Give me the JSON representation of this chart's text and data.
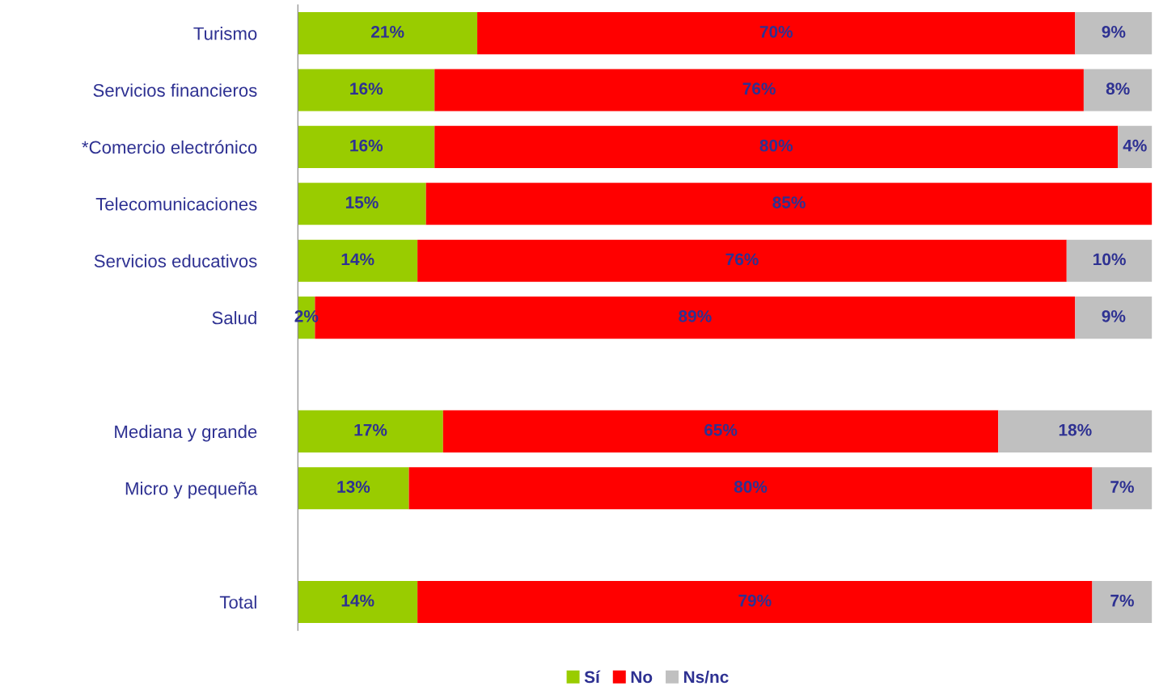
{
  "chart_data": {
    "type": "bar",
    "orientation": "horizontal",
    "stacked": true,
    "tick_labels": "y",
    "legend": "bottom",
    "grid": false,
    "categories": [
      "Turismo",
      "Servicios financieros",
      "*Comercio electrónico",
      "Telecomunicaciones",
      "Servicios educativos",
      "Salud",
      null,
      "Mediana y grande",
      "Micro y pequeña",
      null,
      "Total"
    ],
    "series": [
      {
        "name": "Sí",
        "color": "#99cc00",
        "values": [
          21,
          16,
          16,
          15,
          14,
          2,
          null,
          17,
          13,
          null,
          14
        ],
        "value_labels": [
          "21%",
          "16%",
          "16%",
          "15%",
          "14%",
          "2%",
          null,
          "17%",
          "13%",
          null,
          "14%"
        ]
      },
      {
        "name": "No",
        "color": "#ff0000",
        "values": [
          70,
          76,
          80,
          85,
          76,
          89,
          null,
          65,
          80,
          null,
          79
        ],
        "value_labels": [
          "70%",
          "76%",
          "80%",
          "85%",
          "76%",
          "89%",
          null,
          "65%",
          "80%",
          null,
          "79%"
        ]
      },
      {
        "name": "Ns/nc",
        "color": "#c0c0c0",
        "values": [
          9,
          8,
          4,
          null,
          10,
          9,
          null,
          18,
          7,
          null,
          7
        ],
        "value_labels": [
          "9%",
          "8%",
          "4%",
          null,
          "10%",
          "9%",
          null,
          "18%",
          "7%",
          null,
          "7%"
        ]
      }
    ]
  }
}
